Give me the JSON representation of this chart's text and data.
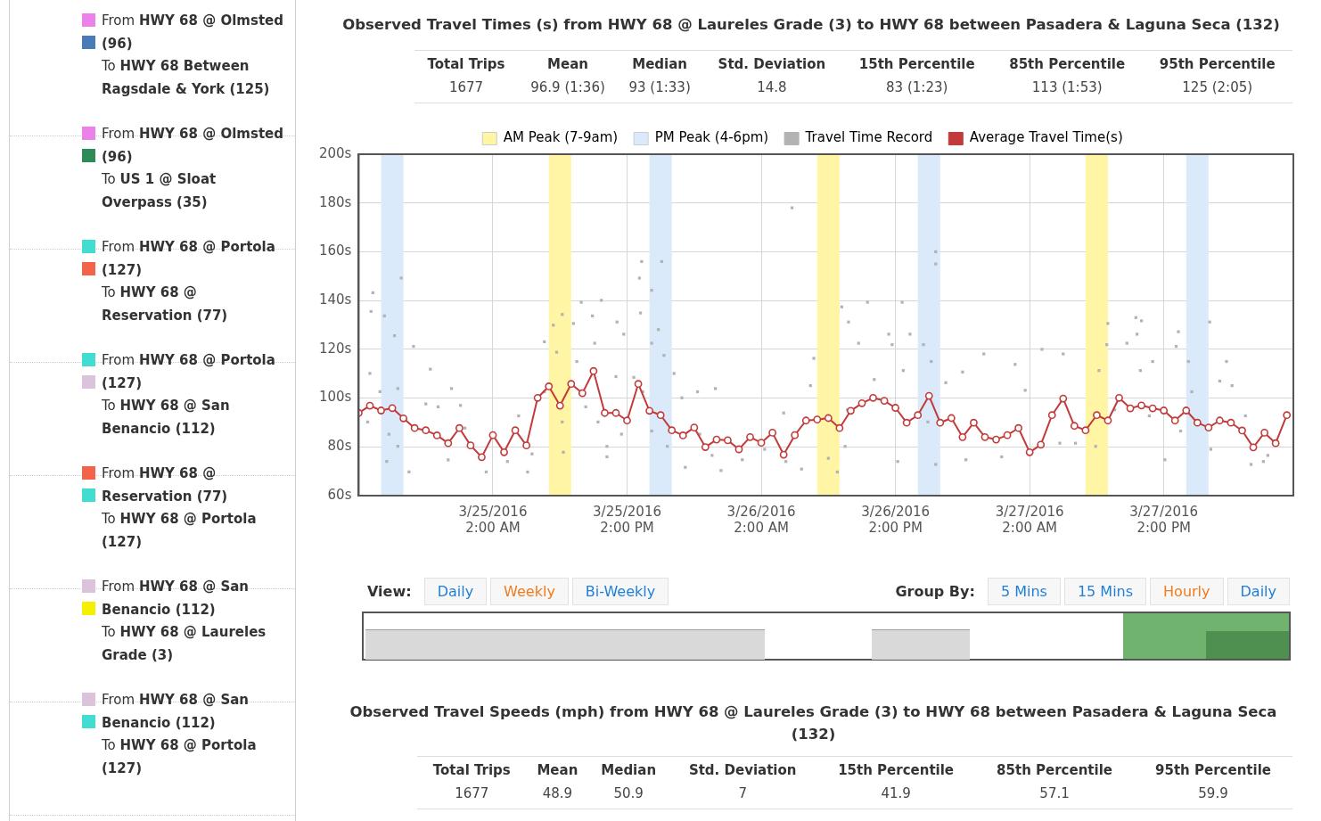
{
  "chart_data": [
    {
      "type": "other",
      "annotations": [
        "From HWY 68 @ Olmsted (96)",
        "To HWY 68 Between Ragsdale & York (125)",
        "From HWY 68 @ Olmsted (96)",
        "To US 1 @ Sloat Overpass (35)",
        "From HWY 68 @ Portola (127)",
        "To HWY 68 @ Reservation (77)",
        "From HWY 68 @ Portola (127)",
        "To HWY 68 @ San Benancio (112)",
        "From HWY 68 @ Reservation (77)",
        "To HWY 68 @ Portola (127)",
        "From HWY 68 @ San Benancio (112)",
        "To HWY 68 @ Laureles Grade (3)",
        "From HWY 68 @ San Benancio (112)",
        "To HWY 68 @ Portola (127)"
      ],
      "colors": [
        "#ea82ea",
        "#4a7bb7",
        "#ea82ea",
        "#2e8b57",
        "#40ddd0",
        "#f4624a",
        "#40ddd0",
        "#dcc3dc",
        "#f4624a",
        "#40ddd0",
        "#dcc3dc",
        "#f5f000",
        "#dcc3dc",
        "#40ddd0"
      ]
    },
    {
      "type": "scatter",
      "title": "Observed Travel Times (s) from HWY 68 @ Laureles Grade (3) to HWY 68 between Pasadera & Laguna Seca (132)",
      "annotations": [
        "Total Trips",
        "Mean",
        "Median",
        "Std. Deviation",
        "15th Percentile",
        "85th Percentile",
        "95th Percentile",
        "1677",
        "96.9 (1:36)",
        "93 (1:33)",
        "14.8",
        "83 (1:23)",
        "113 (1:53)",
        "125 (2:05)"
      ],
      "xlim": [
        "2016-03-24T14:00",
        "2016-03-28T01:35"
      ],
      "xticks": [
        {
          "value": "2016-03-25T02:00",
          "label": "3/25/2016 2:00 AM"
        },
        {
          "value": "2016-03-25T14:00",
          "label": "3/25/2016 2:00 PM"
        },
        {
          "value": "2016-03-26T02:00",
          "label": "3/26/2016 2:00 AM"
        },
        {
          "value": "2016-03-26T14:00",
          "label": "3/26/2016 2:00 PM"
        },
        {
          "value": "2016-03-27T02:00",
          "label": "3/27/2016 2:00 AM"
        },
        {
          "value": "2016-03-27T14:00",
          "label": "3/27/2016 2:00 PM"
        }
      ],
      "ylim": [
        60,
        200
      ],
      "yticks": [
        {
          "value": 60,
          "label": "60s"
        },
        {
          "value": 80,
          "label": "80s"
        },
        {
          "value": 100,
          "label": "100s"
        },
        {
          "value": 120,
          "label": "120s"
        },
        {
          "value": 140,
          "label": "140s"
        },
        {
          "value": 160,
          "label": "160s"
        },
        {
          "value": 180,
          "label": "180s"
        },
        {
          "value": 200,
          "label": "200s"
        }
      ],
      "grid": true,
      "legend": "top",
      "bands": [
        {
          "axis": "x",
          "from": "2016-03-25T07:00",
          "to": "2016-03-25T09:00",
          "label": "AM Peak (7-9am)",
          "color": "#fff5a5"
        },
        {
          "axis": "x",
          "from": "2016-03-24T16:00",
          "to": "2016-03-24T18:00",
          "label": "PM Peak (4-6pm)",
          "color": "#dbeafa"
        },
        {
          "axis": "x",
          "from": "2016-03-25T16:00",
          "to": "2016-03-25T18:00",
          "color": "#dbeafa"
        },
        {
          "axis": "x",
          "from": "2016-03-26T07:00",
          "to": "2016-03-26T09:00",
          "color": "#fff5a5"
        },
        {
          "axis": "x",
          "from": "2016-03-26T16:00",
          "to": "2016-03-26T18:00",
          "color": "#dbeafa"
        },
        {
          "axis": "x",
          "from": "2016-03-27T07:00",
          "to": "2016-03-27T09:00",
          "color": "#fff5a5"
        },
        {
          "axis": "x",
          "from": "2016-03-27T16:00",
          "to": "2016-03-27T18:00",
          "color": "#dbeafa"
        }
      ],
      "series": [
        {
          "name": "Travel Time Record",
          "type": "scatter",
          "color": "#b3b3b3",
          "marker": "square",
          "x": [
            "2016-03-24T15:16",
            "2016-03-24T15:06",
            "2016-03-24T16:18",
            "2016-03-24T17:48",
            "2016-03-24T18:54",
            "2016-03-24T17:12",
            "2016-03-24T15:00",
            "2016-03-24T15:54",
            "2016-03-24T17:30",
            "2016-03-24T14:48",
            "2016-03-24T16:42",
            "2016-03-24T17:30",
            "2016-03-24T18:30",
            "2016-03-24T16:30",
            "2016-03-24T20:24",
            "2016-03-24T20:00",
            "2016-03-24T22:18",
            "2016-03-24T23:06",
            "2016-03-24T21:06",
            "2016-03-24T22:00",
            "2016-03-25T01:24",
            "2016-03-24T23:30",
            "2016-03-25T03:18",
            "2016-03-25T04:18",
            "2016-03-25T05:06",
            "2016-03-25T05:30",
            "2016-03-25T06:36",
            "2016-03-25T07:24",
            "2016-03-25T08:12",
            "2016-03-25T09:54",
            "2016-03-25T11:42",
            "2016-03-25T09:12",
            "2016-03-25T10:54",
            "2016-03-25T11:06",
            "2016-03-25T07:42",
            "2016-03-25T09:30",
            "2016-03-25T06:36",
            "2016-03-25T08:12",
            "2016-03-25T08:18",
            "2016-03-25T10:18",
            "2016-03-25T11:24",
            "2016-03-25T12:12",
            "2016-03-25T12:12",
            "2016-03-25T13:06",
            "2016-03-25T13:42",
            "2016-03-25T13:00",
            "2016-03-25T13:30",
            "2016-03-25T14:36",
            "2016-03-25T15:06",
            "2016-03-25T16:12",
            "2016-03-25T15:12",
            "2016-03-25T16:12",
            "2016-03-25T16:48",
            "2016-03-25T17:18",
            "2016-03-25T15:24",
            "2016-03-25T16:12",
            "2016-03-25T17:36",
            "2016-03-25T18:12",
            "2016-03-25T18:54",
            "2016-03-25T19:12",
            "2016-03-25T20:18",
            "2016-03-25T21:54",
            "2016-03-25T20:30",
            "2016-03-25T21:36",
            "2016-03-25T22:24",
            "2016-03-26T00:18",
            "2016-03-26T02:18",
            "2016-03-26T04:00",
            "2016-03-26T04:12",
            "2016-03-26T05:36",
            "2016-03-26T06:42",
            "2016-03-26T06:24",
            "2016-03-26T09:12",
            "2016-03-26T09:48",
            "2016-03-26T11:30",
            "2016-03-26T10:42",
            "2016-03-26T13:24",
            "2016-03-26T13:42",
            "2016-03-26T14:36",
            "2016-03-26T12:06",
            "2016-03-26T09:42",
            "2016-03-26T09:30",
            "2016-03-26T08:00",
            "2016-03-26T08:48",
            "2016-03-26T14:12",
            "2016-03-26T15:18",
            "2016-03-26T14:42",
            "2016-03-26T16:30",
            "2016-03-26T17:12",
            "2016-03-26T16:54",
            "2016-03-26T17:36",
            "2016-03-26T18:30",
            "2016-03-26T20:00",
            "2016-03-26T20:18",
            "2016-03-26T21:54",
            "2016-03-26T23:30",
            "2016-03-27T00:42",
            "2016-03-27T01:36",
            "2016-03-27T03:06",
            "2016-03-27T05:00",
            "2016-03-27T04:42",
            "2016-03-27T06:06",
            "2016-03-27T07:54",
            "2016-03-27T08:12",
            "2016-03-27T09:00",
            "2016-03-27T08:54",
            "2016-03-27T10:42",
            "2016-03-27T11:30",
            "2016-03-27T12:00",
            "2016-03-27T11:36",
            "2016-03-27T11:54",
            "2016-03-27T13:00",
            "2016-03-27T15:06",
            "2016-03-27T15:18",
            "2016-03-27T14:06",
            "2016-03-27T16:12",
            "2016-03-27T16:30",
            "2016-03-27T18:06",
            "2016-03-27T18:12",
            "2016-03-27T19:00",
            "2016-03-27T19:36",
            "2016-03-27T20:06",
            "2016-03-27T21:48",
            "2016-03-27T22:54",
            "2016-03-27T23:18",
            "2016-03-27T21:18",
            "2016-03-27T15:30",
            "2016-03-27T09:36",
            "2016-03-27T12:42",
            "2016-03-26T04:45",
            "2016-03-25T15:18",
            "2016-03-25T17:06",
            "2016-03-26T17:36",
            "2016-03-26T17:36"
          ],
          "values": [
            143.2,
            135.5,
            133.7,
            149.2,
            121.2,
            125.6,
            110.1,
            102.6,
            103.9,
            90.2,
            85.2,
            80.2,
            69.7,
            74.0,
            111.9,
            97.6,
            103.9,
            97.0,
            96.4,
            74.7,
            69.7,
            87.7,
            74.0,
            92.7,
            69.7,
            77.1,
            123.1,
            129.9,
            134.3,
            139.3,
            140.1,
            130.6,
            133.7,
            122.5,
            118.8,
            115.0,
            102.6,
            90.2,
            77.8,
            96.4,
            90.2,
            80.2,
            75.9,
            131.2,
            126.2,
            108.8,
            85.2,
            108.5,
            149.2,
            144.2,
            134.9,
            122.5,
            128.1,
            117.5,
            102.6,
            86.5,
            80.2,
            110.1,
            100.1,
            71.6,
            102.6,
            103.9,
            85.2,
            76.5,
            70.3,
            74.7,
            79.0,
            93.9,
            74.0,
            70.9,
            116.3,
            105.1,
            137.4,
            131.2,
            139.3,
            122.5,
            126.2,
            121.9,
            139.3,
            107.6,
            95.2,
            80.2,
            75.3,
            69.7,
            74.0,
            126.2,
            111.3,
            121.9,
            115.0,
            90.2,
            72.8,
            106.3,
            110.7,
            74.7,
            118.1,
            75.9,
            113.8,
            103.2,
            120.0,
            118.1,
            81.5,
            81.5,
            80.2,
            111.3,
            130.6,
            121.9,
            122.5,
            133.0,
            131.7,
            126.2,
            111.3,
            115.0,
            121.2,
            127.2,
            74.7,
            115.0,
            102.6,
            131.2,
            79.0,
            107.0,
            115.0,
            105.1,
            72.8,
            74.0,
            76.5,
            92.7,
            86.5,
            95.2,
            92.7,
            178,
            156,
            156,
            160,
            155
          ]
        },
        {
          "name": "Average Travel Time(s)",
          "type": "line",
          "color": "#c23a3a",
          "marker": "circle",
          "x": [
            "2016-03-24T14:00",
            "2016-03-24T15:00",
            "2016-03-24T16:00",
            "2016-03-24T17:00",
            "2016-03-24T18:00",
            "2016-03-24T19:00",
            "2016-03-24T20:00",
            "2016-03-24T21:00",
            "2016-03-24T22:00",
            "2016-03-24T23:00",
            "2016-03-25T00:00",
            "2016-03-25T01:00",
            "2016-03-25T02:00",
            "2016-03-25T03:00",
            "2016-03-25T04:00",
            "2016-03-25T05:00",
            "2016-03-25T06:00",
            "2016-03-25T07:00",
            "2016-03-25T08:00",
            "2016-03-25T09:00",
            "2016-03-25T10:00",
            "2016-03-25T11:00",
            "2016-03-25T12:00",
            "2016-03-25T13:00",
            "2016-03-25T14:00",
            "2016-03-25T15:00",
            "2016-03-25T16:00",
            "2016-03-25T17:00",
            "2016-03-25T18:00",
            "2016-03-25T19:00",
            "2016-03-25T20:00",
            "2016-03-25T21:00",
            "2016-03-25T22:00",
            "2016-03-25T23:00",
            "2016-03-26T00:00",
            "2016-03-26T01:00",
            "2016-03-26T02:00",
            "2016-03-26T03:00",
            "2016-03-26T04:00",
            "2016-03-26T05:00",
            "2016-03-26T06:00",
            "2016-03-26T07:00",
            "2016-03-26T08:00",
            "2016-03-26T09:00",
            "2016-03-26T10:00",
            "2016-03-26T11:00",
            "2016-03-26T12:00",
            "2016-03-26T13:00",
            "2016-03-26T14:00",
            "2016-03-26T15:00",
            "2016-03-26T16:00",
            "2016-03-26T17:00",
            "2016-03-26T18:00",
            "2016-03-26T19:00",
            "2016-03-26T20:00",
            "2016-03-26T21:00",
            "2016-03-26T22:00",
            "2016-03-26T23:00",
            "2016-03-27T00:00",
            "2016-03-27T01:00",
            "2016-03-27T02:00",
            "2016-03-27T03:00",
            "2016-03-27T04:00",
            "2016-03-27T05:00",
            "2016-03-27T06:00",
            "2016-03-27T07:00",
            "2016-03-27T08:00",
            "2016-03-27T09:00",
            "2016-03-27T10:00",
            "2016-03-27T11:00",
            "2016-03-27T12:00",
            "2016-03-27T13:00",
            "2016-03-27T14:00",
            "2016-03-27T15:00",
            "2016-03-27T16:00",
            "2016-03-27T17:00",
            "2016-03-27T18:00",
            "2016-03-27T19:00",
            "2016-03-27T20:00",
            "2016-03-27T21:00",
            "2016-03-27T22:00",
            "2016-03-27T23:00",
            "2016-03-28T00:00",
            "2016-03-28T01:00"
          ],
          "values": [
            93.9,
            96.9,
            94.9,
            95.9,
            91.7,
            87.7,
            86.8,
            84.7,
            81.5,
            87.7,
            80.6,
            75.8,
            84.8,
            77.8,
            86.8,
            80.6,
            100.1,
            104.8,
            96.9,
            105.8,
            102.0,
            111.1,
            93.9,
            93.9,
            90.8,
            105.8,
            94.8,
            93.0,
            86.8,
            84.7,
            87.9,
            79.9,
            83.0,
            82.7,
            79.0,
            84.0,
            81.7,
            85.8,
            76.8,
            84.8,
            90.8,
            91.2,
            91.8,
            87.7,
            94.8,
            97.9,
            100.1,
            98.9,
            96.0,
            89.9,
            93.0,
            100.9,
            89.9,
            91.8,
            84.0,
            89.9,
            84.0,
            83.0,
            84.8,
            87.7,
            77.8,
            80.9,
            93.0,
            99.8,
            88.6,
            86.8,
            93.0,
            90.8,
            100.1,
            95.8,
            97.0,
            95.8,
            94.9,
            90.8,
            94.9,
            89.9,
            87.9,
            90.8,
            89.9,
            86.7,
            79.8,
            85.8,
            81.5,
            93.0
          ]
        }
      ]
    },
    {
      "type": "other",
      "annotations": [
        "View:",
        "Daily",
        "Weekly",
        "Bi-Weekly",
        "Group By:",
        "5 Mins",
        "15 Mins",
        "Hourly",
        "Daily"
      ],
      "colors": [
        "#333333",
        "#1f7fd8",
        "#f07a1c",
        "#1f7fd8",
        "#333333",
        "#1f7fd8",
        "#1f7fd8",
        "#f07a1c",
        "#1f7fd8"
      ]
    },
    {
      "type": "other",
      "title": "Observed Travel Speeds (mph) from HWY 68 @ Laureles Grade (3) to HWY 68 between Pasadera & Laguna Seca (132)",
      "annotations": [
        "Total Trips",
        "Mean",
        "Median",
        "Std. Deviation",
        "15th Percentile",
        "85th Percentile",
        "95th Percentile",
        "1677",
        "48.9",
        "50.9",
        "7",
        "41.9",
        "57.1",
        "59.9"
      ]
    }
  ]
}
